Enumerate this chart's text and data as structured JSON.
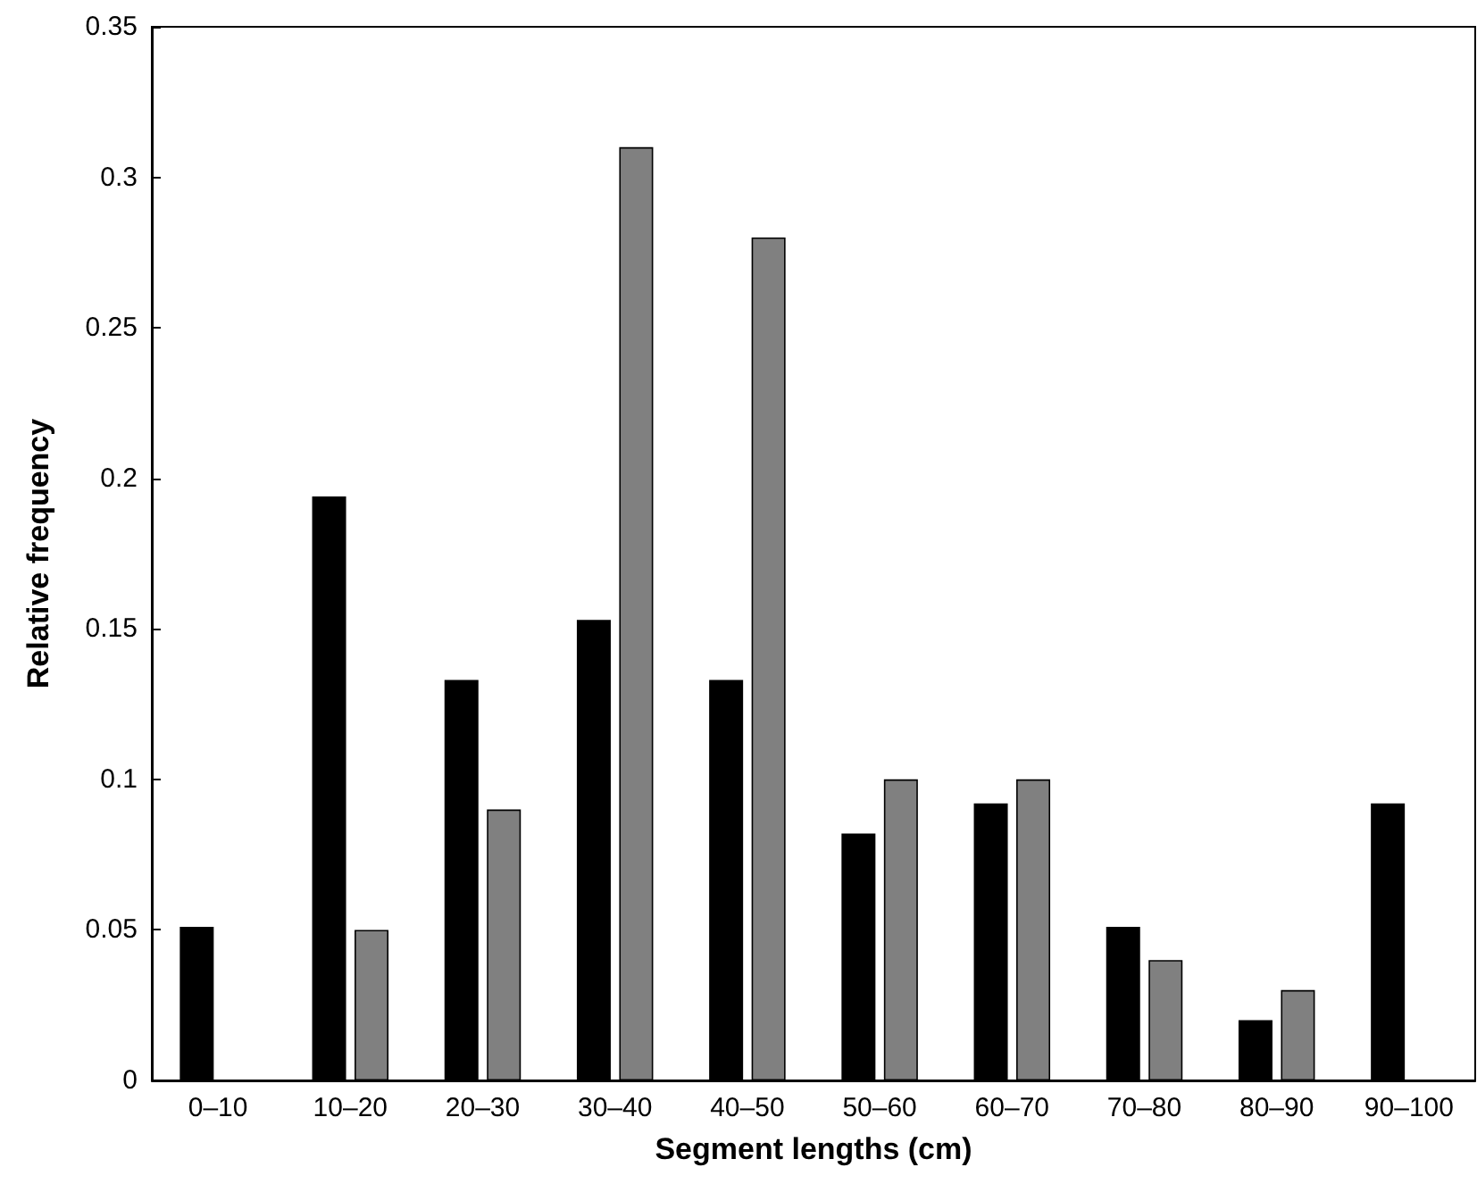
{
  "chart_data": {
    "type": "bar",
    "xlabel": "Segment lengths (cm)",
    "ylabel": "Relative frequency",
    "categories": [
      "0–10",
      "10–20",
      "20–30",
      "30–40",
      "40–50",
      "50–60",
      "60–70",
      "70–80",
      "80–90",
      "90–100"
    ],
    "series": [
      {
        "color": "#000000",
        "values": [
          0.051,
          0.194,
          0.133,
          0.153,
          0.133,
          0.082,
          0.092,
          0.051,
          0.02,
          0.092
        ]
      },
      {
        "color": "#808080",
        "values": [
          null,
          0.05,
          0.09,
          0.31,
          0.28,
          0.1,
          0.1,
          0.04,
          0.03,
          null
        ]
      }
    ],
    "ylim": [
      0,
      0.35
    ],
    "yticks": [
      0,
      0.05,
      0.1,
      0.15,
      0.2,
      0.25,
      0.3,
      0.35
    ],
    "grid": false
  }
}
